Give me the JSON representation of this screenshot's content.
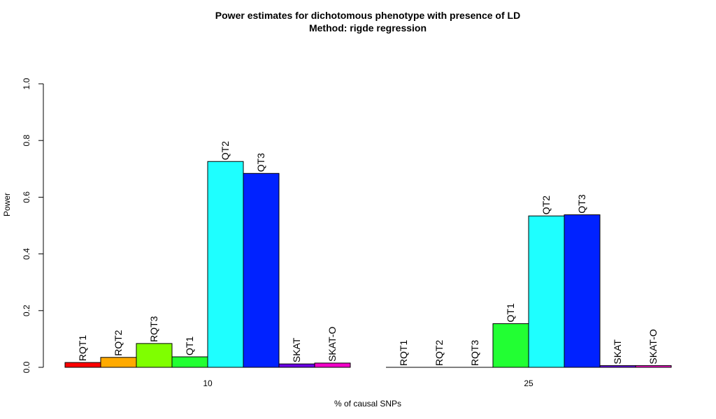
{
  "chart_data": {
    "type": "bar",
    "title": "Power estimates for dichotomous phenotype with presence of LD",
    "subtitle": "Method: rigde regression",
    "xlabel": "% of causal SNPs",
    "ylabel": "Power",
    "ylim": [
      0,
      1
    ],
    "yticks": [
      "0.0",
      "0.2",
      "0.4",
      "0.6",
      "0.8",
      "1.0"
    ],
    "categories": [
      "10",
      "25"
    ],
    "series": [
      {
        "name": "RQT1",
        "color": "#FF0000",
        "values": [
          0.017,
          0.0
        ]
      },
      {
        "name": "RQT2",
        "color": "#FFAA00",
        "values": [
          0.035,
          0.0
        ]
      },
      {
        "name": "RQT3",
        "color": "#7FFF00",
        "values": [
          0.084,
          0.0
        ]
      },
      {
        "name": "QT1",
        "color": "#22FF33",
        "values": [
          0.037,
          0.154
        ]
      },
      {
        "name": "QT2",
        "color": "#1EFFFF",
        "values": [
          0.726,
          0.534
        ]
      },
      {
        "name": "QT3",
        "color": "#0022FF",
        "values": [
          0.684,
          0.538
        ]
      },
      {
        "name": "SKAT",
        "color": "#6A00E6",
        "values": [
          0.012,
          0.006
        ]
      },
      {
        "name": "SKAT-O",
        "color": "#F200C8",
        "values": [
          0.015,
          0.006
        ]
      }
    ],
    "grid": false,
    "legend": "none"
  }
}
